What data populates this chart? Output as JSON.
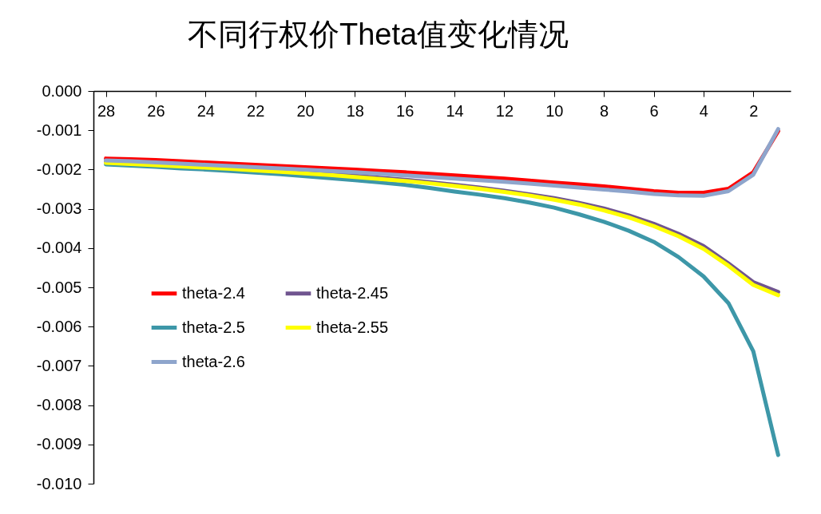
{
  "chart_data": {
    "type": "line",
    "title": "不同行权价Theta值变化情况",
    "categories": [
      "28",
      null,
      "26",
      null,
      "24",
      null,
      "22",
      null,
      "20",
      null,
      "18",
      null,
      "16",
      null,
      "14",
      null,
      "12",
      null,
      "10",
      null,
      "8",
      null,
      "6",
      null,
      "4",
      null,
      "2",
      null
    ],
    "series": [
      {
        "name": "theta-2.4",
        "color": "#ff0000",
        "values": [
          -0.00172,
          -0.00174,
          -0.00176,
          -0.00179,
          -0.00182,
          -0.00185,
          -0.00188,
          -0.00191,
          -0.00194,
          -0.00197,
          -0.002,
          -0.00204,
          -0.00207,
          -0.00211,
          -0.00215,
          -0.00219,
          -0.00223,
          -0.00228,
          -0.00233,
          -0.00238,
          -0.00243,
          -0.00249,
          -0.00255,
          -0.00259,
          -0.00259,
          -0.00249,
          -0.00207,
          -0.00102
        ]
      },
      {
        "name": "theta-2.45",
        "color": "#70558f",
        "values": [
          -0.0018,
          -0.00183,
          -0.00186,
          -0.00189,
          -0.00192,
          -0.00195,
          -0.00199,
          -0.00203,
          -0.00207,
          -0.00211,
          -0.00216,
          -0.00221,
          -0.00226,
          -0.00232,
          -0.00239,
          -0.00246,
          -0.00254,
          -0.00263,
          -0.00273,
          -0.00285,
          -0.00299,
          -0.00317,
          -0.00338,
          -0.00364,
          -0.00395,
          -0.00439,
          -0.00487,
          -0.00512
        ]
      },
      {
        "name": "theta-2.5",
        "color": "#3d97a8",
        "values": [
          -0.00187,
          -0.0019,
          -0.00193,
          -0.00197,
          -0.002,
          -0.00204,
          -0.00208,
          -0.00212,
          -0.00217,
          -0.00222,
          -0.00227,
          -0.00233,
          -0.00239,
          -0.00247,
          -0.00256,
          -0.00264,
          -0.00273,
          -0.00284,
          -0.00297,
          -0.00314,
          -0.00333,
          -0.00356,
          -0.00384,
          -0.00423,
          -0.00472,
          -0.0054,
          -0.00663,
          -0.00927
        ]
      },
      {
        "name": "theta-2.55",
        "color": "#ffff00",
        "values": [
          -0.00183,
          -0.00186,
          -0.00189,
          -0.00192,
          -0.00195,
          -0.00198,
          -0.00202,
          -0.00206,
          -0.0021,
          -0.00214,
          -0.00219,
          -0.00224,
          -0.00229,
          -0.00235,
          -0.00242,
          -0.00249,
          -0.00257,
          -0.00266,
          -0.00277,
          -0.00289,
          -0.00304,
          -0.00322,
          -0.00344,
          -0.0037,
          -0.00402,
          -0.00445,
          -0.00494,
          -0.0052
        ]
      },
      {
        "name": "theta-2.6",
        "color": "#8ea5cc",
        "values": [
          -0.00177,
          -0.00179,
          -0.00182,
          -0.00185,
          -0.00188,
          -0.00191,
          -0.00194,
          -0.00197,
          -0.002,
          -0.00204,
          -0.00207,
          -0.00211,
          -0.00215,
          -0.00219,
          -0.00223,
          -0.00227,
          -0.00231,
          -0.00236,
          -0.00241,
          -0.00246,
          -0.00251,
          -0.00256,
          -0.00262,
          -0.00266,
          -0.00267,
          -0.00255,
          -0.00213,
          -0.00097
        ]
      }
    ],
    "ylim": [
      -0.01,
      0
    ],
    "yticks": [
      {
        "value": 0,
        "label": "0.000"
      },
      {
        "value": -0.001,
        "label": "-0.001"
      },
      {
        "value": -0.002,
        "label": "-0.002"
      },
      {
        "value": -0.003,
        "label": "-0.003"
      },
      {
        "value": -0.004,
        "label": "-0.004"
      },
      {
        "value": -0.005,
        "label": "-0.005"
      },
      {
        "value": -0.006,
        "label": "-0.006"
      },
      {
        "value": -0.007,
        "label": "-0.007"
      },
      {
        "value": -0.008,
        "label": "-0.008"
      },
      {
        "value": -0.009,
        "label": "-0.009"
      },
      {
        "value": -0.01,
        "label": "-0.010"
      }
    ],
    "grid": false,
    "legend": "left",
    "marker": "none",
    "line_style": "solid"
  }
}
